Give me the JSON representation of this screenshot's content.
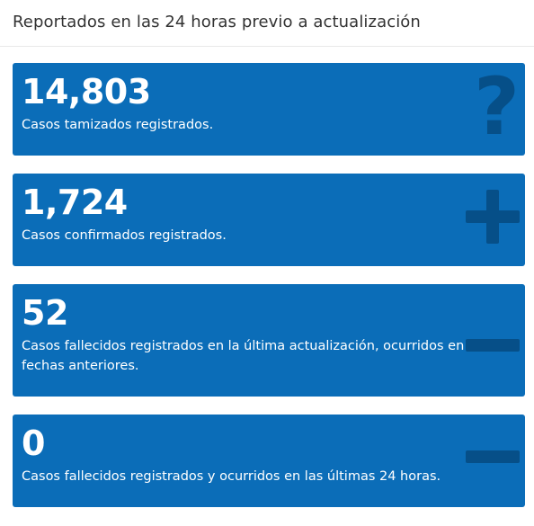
{
  "header": {
    "title": "Reportados en las 24 horas previo a actualización"
  },
  "cards": [
    {
      "value": "14,803",
      "description": "Casos tamizados registrados.",
      "icon": "question-icon"
    },
    {
      "value": "1,724",
      "description": "Casos confirmados registrados.",
      "icon": "plus-icon"
    },
    {
      "value": "52",
      "description": "Casos fallecidos registrados en la última actualización, ocurridos en fechas anteriores.",
      "icon": "minus-icon"
    },
    {
      "value": "0",
      "description": "Casos fallecidos registrados y ocurridos en las últimas 24 horas.",
      "icon": "minus-icon"
    }
  ],
  "colors": {
    "card_bg": "#0b6db8",
    "icon": "#064f88",
    "header_text": "#333333"
  }
}
